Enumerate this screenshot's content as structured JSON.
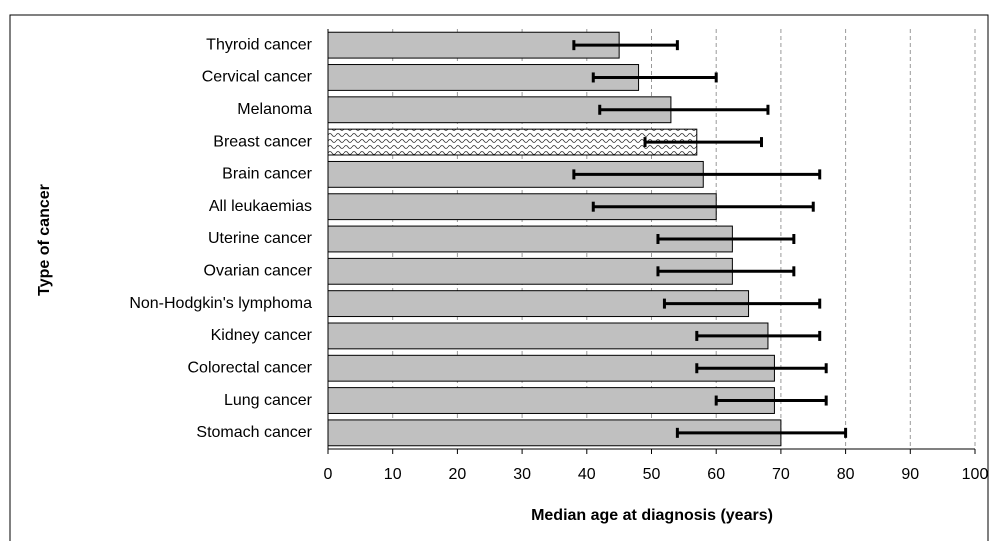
{
  "chart_data": {
    "type": "bar",
    "orientation": "horizontal",
    "categories": [
      "Thyroid cancer",
      "Cervical cancer",
      "Melanoma",
      "Breast cancer",
      "Brain cancer",
      "All leukaemias",
      "Uterine cancer",
      "Ovarian cancer",
      "Non-Hodgkin's lymphoma",
      "Kidney cancer",
      "Colorectal cancer",
      "Lung cancer",
      "Stomach cancer"
    ],
    "values": [
      45,
      48,
      53,
      57,
      58,
      60,
      62.5,
      62.5,
      65,
      68,
      69,
      69,
      70
    ],
    "error_low": [
      38,
      41,
      42,
      49,
      38,
      41,
      51,
      51,
      52,
      57,
      57,
      60,
      54
    ],
    "error_high": [
      54,
      60,
      68,
      67,
      76,
      75,
      72,
      72,
      76,
      76,
      77,
      77,
      80
    ],
    "hatched": [
      false,
      false,
      false,
      true,
      false,
      false,
      false,
      false,
      false,
      false,
      false,
      false,
      false
    ],
    "color": "#c0c0c0",
    "xlabel": "Median age at diagnosis (years)",
    "ylabel": "Type of cancer",
    "xlim": [
      0,
      100
    ],
    "xticks": [
      0,
      10,
      20,
      30,
      40,
      50,
      60,
      70,
      80,
      90,
      100
    ],
    "grid": true
  }
}
